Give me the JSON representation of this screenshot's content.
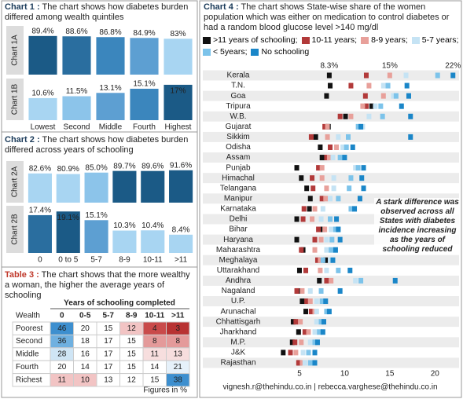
{
  "chart_data": [
    {
      "type": "bar",
      "label": "Chart 1 :",
      "title": "The chart shows how diabetes burden differed among wealth quintiles",
      "categories": [
        "Lowest",
        "Second",
        "Middle",
        "Fourth",
        "Highest"
      ],
      "panels": [
        {
          "label": "Chart 1A",
          "values": [
            89.4,
            88.6,
            86.8,
            84.9,
            83
          ],
          "value_labels": [
            "89.4%",
            "88.6%",
            "86.8%",
            "84.9%",
            "83%"
          ],
          "ylim": [
            0,
            100
          ],
          "colors": [
            "#1b5a86",
            "#2a6e9f",
            "#3b86bd",
            "#5d9fd2",
            "#a8d5f2"
          ]
        },
        {
          "label": "Chart 1B",
          "values": [
            10.6,
            11.5,
            13.1,
            15.1,
            17
          ],
          "value_labels": [
            "10.6%",
            "11.5%",
            "13.1%",
            "15.1%",
            "17%"
          ],
          "ylim": [
            0,
            20
          ],
          "colors": [
            "#a8d5f2",
            "#8cc4ea",
            "#5d9fd2",
            "#3b86bd",
            "#1b5a86"
          ]
        }
      ]
    },
    {
      "type": "bar",
      "label": "Chart 2 :",
      "title": "The chart shows how diabetes burden differed across years of schooling",
      "categories": [
        "0",
        "0 to 5",
        "5-7",
        "8-9",
        "10-11",
        ">11"
      ],
      "panels": [
        {
          "label": "Chart 2A",
          "values": [
            82.6,
            80.9,
            85.0,
            89.7,
            89.6,
            91.6
          ],
          "value_labels": [
            "82.6%",
            "80.9%",
            "85.0%",
            "89.7%",
            "89.6%",
            "91.6%"
          ],
          "ylim": [
            0,
            100
          ],
          "colors": [
            "#a8d5f2",
            "#a8d5f2",
            "#8cc4ea",
            "#1b5a86",
            "#1b5a86",
            "#1b5a86"
          ]
        },
        {
          "label": "Chart 2B",
          "values": [
            17.4,
            19.1,
            15.1,
            10.3,
            10.4,
            8.4
          ],
          "value_labels": [
            "17.4%",
            "19.1%",
            "15.1%",
            "10.3%",
            "10.4%",
            "8.4%"
          ],
          "ylim": [
            0,
            21
          ],
          "colors": [
            "#2a6e9f",
            "#1b5a86",
            "#5d9fd2",
            "#a8d5f2",
            "#a8d5f2",
            "#a8d5f2"
          ]
        }
      ]
    },
    {
      "type": "dot",
      "label": "Chart 4 :",
      "title": "The chart shows State-wise share of the women population which was either on medication to control diabetes or had a random blood glucose level >140 mg/dl",
      "categories": [
        "Kerala",
        "T.N.",
        "Goa",
        "Tripura",
        "W.B.",
        "Gujarat",
        "Sikkim",
        "Odisha",
        "Assam",
        "Punjab",
        "Himachal",
        "Telangana",
        "Manipur",
        "Karnataka",
        "Delhi",
        "Bihar",
        "Haryana",
        "Maharashtra",
        "Meghalaya",
        "Uttarakhand",
        "Andhra",
        "Nagaland",
        "U.P.",
        "Arunachal",
        "Chhattisgarh",
        "Jharkhand",
        "M.P.",
        "J&K",
        "Rajasthan"
      ],
      "series": [
        {
          "name": ">11 years of schooling;",
          "color": "#111111",
          "values": [
            8.3,
            8.4,
            8.0,
            13.0,
            10.1,
            8.2,
            6.8,
            7.3,
            7.5,
            4.7,
            5.2,
            5.8,
            6.2,
            6.1,
            4.7,
            7.6,
            4.7,
            5.4,
            7.9,
            5.0,
            7.2,
            4.8,
            5.3,
            5.7,
            4.3,
            4.9,
            4.2,
            3.2,
            5.0
          ]
        },
        {
          "name": "10-11 years;",
          "color": "#b23a3a",
          "values": [
            12.4,
            10.7,
            12.3,
            12.4,
            9.5,
            7.8,
            6.3,
            8.4,
            8.0,
            7.1,
            6.4,
            6.5,
            7.5,
            5.5,
            5.4,
            7.1,
            6.7,
            5.2,
            7.0,
            5.7,
            8.0,
            4.7,
            5.8,
            6.3,
            4.6,
            5.6,
            4.5,
            4.0,
            4.9
          ]
        },
        {
          "name": "8-9 years;",
          "color": "#e8a09a",
          "values": [
            15,
            12.7,
            14.3,
            12.0,
            10.7,
            8.1,
            8.1,
            9.1,
            8.3,
            7.5,
            7.5,
            8.0,
            7.9,
            6.7,
            6.4,
            7.8,
            7.4,
            6.7,
            7.3,
            7.3,
            8.5,
            5.3,
            6.2,
            6.7,
            5.1,
            6.0,
            5.2,
            4.6,
            5.3
          ]
        },
        {
          "name": "5-7 years;",
          "color": "#c5e3f4",
          "values": [
            16.8,
            14.3,
            15.4,
            13.4,
            12.7,
            12.0,
            9.3,
            9.8,
            8.7,
            11.2,
            8.8,
            8.8,
            8.4,
            7.6,
            7.4,
            8.5,
            8.0,
            8.0,
            8.4,
            8.0,
            11.2,
            6.2,
            6.9,
            6.9,
            6.9,
            6.7,
            6.2,
            5.4,
            5.6
          ]
        },
        {
          "name": "< 5years;",
          "color": "#7cc3ea",
          "values": [
            20.3,
            14.8,
            15.7,
            14.0,
            14.2,
            11.5,
            10.4,
            10.2,
            9.5,
            11.5,
            10.7,
            10.5,
            9.3,
            10.7,
            8.4,
            9.0,
            8.6,
            8.5,
            7.6,
            9.3,
            11.8,
            7.4,
            7.5,
            8.0,
            7.4,
            7.2,
            6.7,
            6.0,
            6.2
          ]
        },
        {
          "name": "No schooling",
          "color": "#1a86c8",
          "values": [
            22,
            16.9,
            17.1,
            16.3,
            17.3,
            11.8,
            17.3,
            10.9,
            10.0,
            12.1,
            11.9,
            12.1,
            11.7,
            11.1,
            9.1,
            9.3,
            9.5,
            9.0,
            8.7,
            10.6,
            15.6,
            9.5,
            7.9,
            8.3,
            7.7,
            7.6,
            7.0,
            6.7,
            6.7
          ]
        }
      ],
      "xlim": [
        3,
        22.5
      ],
      "xticks": [
        5,
        10,
        15,
        20
      ],
      "annotations": [
        {
          "value": 8.3,
          "label": "8.3%"
        },
        {
          "value": 15,
          "label": "15%"
        },
        {
          "value": 22,
          "label": "22%"
        }
      ],
      "note": "A stark difference was observed across all States with diabetes incidence increasing as the years of schooling reduced"
    }
  ],
  "table": {
    "label": "Table 3 :",
    "title": "The chart shows that the more wealthy a woman, the higher the average years of schooling",
    "group_header": "Years of schooling completed",
    "columns": [
      "Wealth",
      "0",
      "0-5",
      "5-7",
      "8-9",
      "10-11",
      ">11"
    ],
    "rows": [
      {
        "label": "Poorest",
        "values": [
          46,
          20,
          15,
          12,
          4,
          3
        ],
        "colors": [
          "#3d8fcf",
          "#ffffff",
          "#ffffff",
          "#f2c4c4",
          "#c94a4a",
          "#b83232"
        ]
      },
      {
        "label": "Second",
        "values": [
          36,
          18,
          17,
          15,
          8,
          8
        ],
        "colors": [
          "#6fb0e0",
          "#ffffff",
          "#ffffff",
          "#ffffff",
          "#e49a9a",
          "#e49a9a"
        ]
      },
      {
        "label": "Middle",
        "values": [
          28,
          16,
          17,
          15,
          11,
          13
        ],
        "colors": [
          "#cfe5f5",
          "#ffffff",
          "#ffffff",
          "#ffffff",
          "#f7dede",
          "#f7dede"
        ]
      },
      {
        "label": "Fourth",
        "values": [
          20,
          14,
          17,
          15,
          14,
          21
        ],
        "colors": [
          "#ffffff",
          "#ffffff",
          "#ffffff",
          "#ffffff",
          "#ffffff",
          "#e6f1fa"
        ]
      },
      {
        "label": "Richest",
        "values": [
          11,
          10,
          13,
          12,
          15,
          38
        ],
        "colors": [
          "#f2c4c4",
          "#f2c4c4",
          "#ffffff",
          "#ffffff",
          "#ffffff",
          "#3d8fcf"
        ]
      }
    ],
    "note": "Figures in %"
  },
  "footer": "vignesh.r@thehindu.co.in | rebecca.varghese@thehindu.co.in"
}
